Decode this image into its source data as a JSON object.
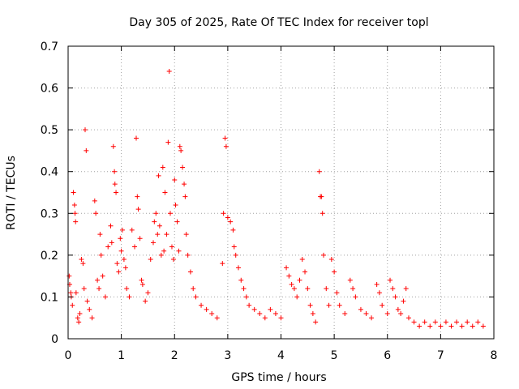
{
  "chart_data": {
    "type": "scatter",
    "title": "Day 305 of 2025, Rate Of TEC Index for receiver topl",
    "xlabel": "GPS time / hours",
    "ylabel": "ROTI / TECUs",
    "xlim": [
      0,
      8
    ],
    "ylim": [
      0,
      0.7
    ],
    "xticks": [
      "0",
      "1",
      "2",
      "3",
      "4",
      "5",
      "6",
      "7",
      "8"
    ],
    "yticks": [
      "0",
      "0.1",
      "0.2",
      "0.3",
      "0.4",
      "0.5",
      "0.6",
      "0.7"
    ],
    "grid": true,
    "legend": "none",
    "marker": "+",
    "color": "#ff0000",
    "series": [
      {
        "values": [
          [
            0.02,
            0.15
          ],
          [
            0.03,
            0.13
          ],
          [
            0.05,
            0.11
          ],
          [
            0.06,
            0.1
          ],
          [
            0.08,
            0.08
          ],
          [
            0.1,
            0.35
          ],
          [
            0.12,
            0.32
          ],
          [
            0.13,
            0.3
          ],
          [
            0.14,
            0.28
          ],
          [
            0.15,
            0.11
          ],
          [
            0.18,
            0.05
          ],
          [
            0.2,
            0.04
          ],
          [
            0.22,
            0.06
          ],
          [
            0.25,
            0.19
          ],
          [
            0.28,
            0.18
          ],
          [
            0.3,
            0.12
          ],
          [
            0.32,
            0.5
          ],
          [
            0.34,
            0.45
          ],
          [
            0.36,
            0.09
          ],
          [
            0.4,
            0.07
          ],
          [
            0.45,
            0.05
          ],
          [
            0.5,
            0.33
          ],
          [
            0.52,
            0.3
          ],
          [
            0.55,
            0.14
          ],
          [
            0.58,
            0.12
          ],
          [
            0.6,
            0.25
          ],
          [
            0.62,
            0.2
          ],
          [
            0.65,
            0.15
          ],
          [
            0.7,
            0.1
          ],
          [
            0.75,
            0.22
          ],
          [
            0.8,
            0.27
          ],
          [
            0.82,
            0.23
          ],
          [
            0.85,
            0.46
          ],
          [
            0.87,
            0.4
          ],
          [
            0.88,
            0.37
          ],
          [
            0.9,
            0.35
          ],
          [
            0.92,
            0.18
          ],
          [
            0.95,
            0.16
          ],
          [
            0.98,
            0.24
          ],
          [
            1.0,
            0.21
          ],
          [
            1.02,
            0.26
          ],
          [
            1.05,
            0.19
          ],
          [
            1.08,
            0.17
          ],
          [
            1.1,
            0.12
          ],
          [
            1.15,
            0.1
          ],
          [
            1.2,
            0.26
          ],
          [
            1.25,
            0.22
          ],
          [
            1.28,
            0.48
          ],
          [
            1.3,
            0.34
          ],
          [
            1.32,
            0.31
          ],
          [
            1.35,
            0.24
          ],
          [
            1.38,
            0.14
          ],
          [
            1.4,
            0.13
          ],
          [
            1.45,
            0.09
          ],
          [
            1.5,
            0.11
          ],
          [
            1.55,
            0.19
          ],
          [
            1.6,
            0.23
          ],
          [
            1.62,
            0.28
          ],
          [
            1.65,
            0.3
          ],
          [
            1.68,
            0.25
          ],
          [
            1.7,
            0.39
          ],
          [
            1.72,
            0.27
          ],
          [
            1.75,
            0.2
          ],
          [
            1.78,
            0.41
          ],
          [
            1.8,
            0.21
          ],
          [
            1.82,
            0.35
          ],
          [
            1.85,
            0.25
          ],
          [
            1.88,
            0.47
          ],
          [
            1.9,
            0.64
          ],
          [
            1.92,
            0.3
          ],
          [
            1.95,
            0.22
          ],
          [
            1.98,
            0.19
          ],
          [
            2.0,
            0.38
          ],
          [
            2.02,
            0.32
          ],
          [
            2.05,
            0.28
          ],
          [
            2.08,
            0.21
          ],
          [
            2.1,
            0.46
          ],
          [
            2.12,
            0.45
          ],
          [
            2.15,
            0.41
          ],
          [
            2.18,
            0.37
          ],
          [
            2.2,
            0.34
          ],
          [
            2.22,
            0.25
          ],
          [
            2.25,
            0.2
          ],
          [
            2.3,
            0.16
          ],
          [
            2.35,
            0.12
          ],
          [
            2.4,
            0.1
          ],
          [
            2.5,
            0.08
          ],
          [
            2.6,
            0.07
          ],
          [
            2.7,
            0.06
          ],
          [
            2.8,
            0.05
          ],
          [
            2.9,
            0.18
          ],
          [
            2.92,
            0.3
          ],
          [
            2.95,
            0.48
          ],
          [
            2.97,
            0.46
          ],
          [
            3.0,
            0.29
          ],
          [
            3.05,
            0.28
          ],
          [
            3.1,
            0.26
          ],
          [
            3.12,
            0.22
          ],
          [
            3.15,
            0.2
          ],
          [
            3.2,
            0.17
          ],
          [
            3.25,
            0.14
          ],
          [
            3.3,
            0.12
          ],
          [
            3.35,
            0.1
          ],
          [
            3.4,
            0.08
          ],
          [
            3.5,
            0.07
          ],
          [
            3.6,
            0.06
          ],
          [
            3.7,
            0.05
          ],
          [
            3.8,
            0.07
          ],
          [
            3.9,
            0.06
          ],
          [
            4.0,
            0.05
          ],
          [
            4.1,
            0.17
          ],
          [
            4.15,
            0.15
          ],
          [
            4.2,
            0.13
          ],
          [
            4.25,
            0.12
          ],
          [
            4.3,
            0.1
          ],
          [
            4.35,
            0.14
          ],
          [
            4.4,
            0.19
          ],
          [
            4.45,
            0.16
          ],
          [
            4.5,
            0.12
          ],
          [
            4.55,
            0.08
          ],
          [
            4.6,
            0.06
          ],
          [
            4.65,
            0.04
          ],
          [
            4.72,
            0.4
          ],
          [
            4.74,
            0.34
          ],
          [
            4.76,
            0.34
          ],
          [
            4.78,
            0.3
          ],
          [
            4.8,
            0.2
          ],
          [
            4.85,
            0.12
          ],
          [
            4.9,
            0.08
          ],
          [
            4.95,
            0.19
          ],
          [
            5.0,
            0.16
          ],
          [
            5.05,
            0.11
          ],
          [
            5.1,
            0.08
          ],
          [
            5.2,
            0.06
          ],
          [
            5.3,
            0.14
          ],
          [
            5.35,
            0.12
          ],
          [
            5.4,
            0.1
          ],
          [
            5.5,
            0.07
          ],
          [
            5.6,
            0.06
          ],
          [
            5.7,
            0.05
          ],
          [
            5.8,
            0.13
          ],
          [
            5.85,
            0.11
          ],
          [
            5.9,
            0.08
          ],
          [
            6.0,
            0.06
          ],
          [
            6.05,
            0.14
          ],
          [
            6.1,
            0.12
          ],
          [
            6.15,
            0.1
          ],
          [
            6.2,
            0.07
          ],
          [
            6.25,
            0.06
          ],
          [
            6.3,
            0.09
          ],
          [
            6.35,
            0.12
          ],
          [
            6.4,
            0.05
          ],
          [
            6.5,
            0.04
          ],
          [
            6.6,
            0.03
          ],
          [
            6.7,
            0.04
          ],
          [
            6.8,
            0.03
          ],
          [
            6.9,
            0.04
          ],
          [
            7.0,
            0.03
          ],
          [
            7.1,
            0.04
          ],
          [
            7.2,
            0.03
          ],
          [
            7.3,
            0.04
          ],
          [
            7.4,
            0.03
          ],
          [
            7.5,
            0.04
          ],
          [
            7.6,
            0.03
          ],
          [
            7.7,
            0.04
          ],
          [
            7.8,
            0.03
          ]
        ]
      }
    ]
  }
}
